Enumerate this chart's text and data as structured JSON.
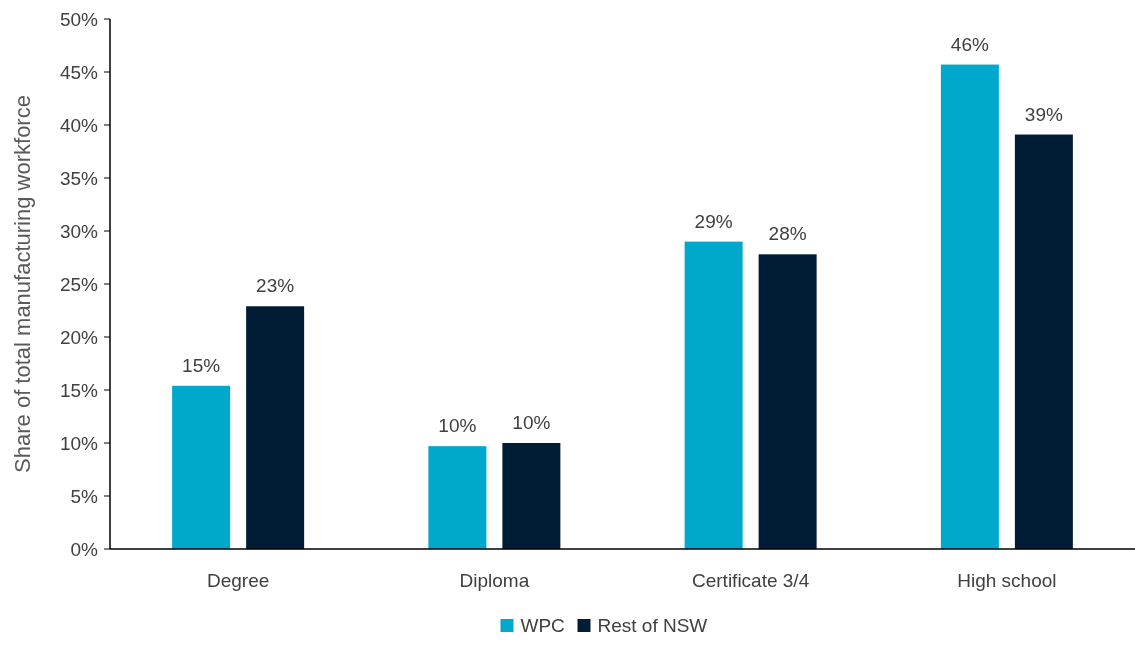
{
  "chart_data": {
    "type": "bar",
    "ylabel": "Share of total manufacturing workforce",
    "categories": [
      "Degree",
      "Diploma",
      "Certificate 3/4",
      "High school"
    ],
    "series": [
      {
        "name": "WPC",
        "color": "#00a8cc",
        "values": [
          15.4,
          9.7,
          29.0,
          45.7
        ],
        "value_labels": [
          "15%",
          "10%",
          "29%",
          "46%"
        ]
      },
      {
        "name": "Rest of NSW",
        "color": "#001d35",
        "values": [
          22.9,
          10.0,
          27.8,
          39.1
        ],
        "value_labels": [
          "23%",
          "10%",
          "28%",
          "39%"
        ]
      }
    ],
    "ylim": [
      0,
      50
    ],
    "yticks": [
      {
        "value": 0,
        "label": "0%"
      },
      {
        "value": 5,
        "label": "5%"
      },
      {
        "value": 10,
        "label": "10%"
      },
      {
        "value": 15,
        "label": "15%"
      },
      {
        "value": 20,
        "label": "20%"
      },
      {
        "value": 25,
        "label": "25%"
      },
      {
        "value": 30,
        "label": "30%"
      },
      {
        "value": 35,
        "label": "35%"
      },
      {
        "value": 40,
        "label": "40%"
      },
      {
        "value": 45,
        "label": "45%"
      },
      {
        "value": 50,
        "label": "50%"
      }
    ],
    "grid": false,
    "legend": "bottom"
  }
}
